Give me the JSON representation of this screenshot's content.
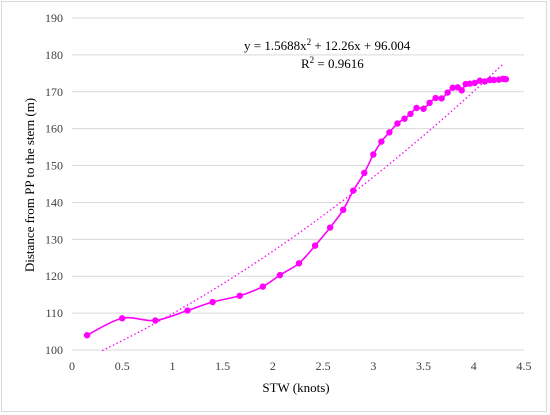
{
  "chart_data": {
    "type": "scatter",
    "xlabel": "STW (knots)",
    "ylabel": "Distance from PP to the stern (m)",
    "xlim": [
      0,
      4.5
    ],
    "ylim": [
      100,
      190
    ],
    "x_ticks": [
      "0",
      "0.5",
      "1",
      "1.5",
      "2",
      "2.5",
      "3",
      "3.5",
      "4",
      "4.5"
    ],
    "y_ticks": [
      "100",
      "110",
      "120",
      "130",
      "140",
      "150",
      "160",
      "170",
      "180",
      "190"
    ],
    "grid": "horizontal",
    "legend": "none",
    "colors": {
      "series": "#ff00ff",
      "grid": "#d9d9d9",
      "frame": "#d9d9d9"
    },
    "equation": {
      "prefix": "y = 1.5688x",
      "sup": "2",
      "suffix": " + 12.26x + 96.004"
    },
    "r2": {
      "prefix": "R",
      "sup": "2",
      "suffix": " = 0.9616"
    },
    "trendline": {
      "type": "polynomial",
      "order": 2,
      "a": 1.5688,
      "b": 12.26,
      "c": 96.004,
      "x_range": [
        0.3,
        4.3
      ],
      "style": "dotted"
    },
    "series": [
      {
        "x": [
          0.15,
          0.5,
          0.83,
          1.15,
          1.4,
          1.67,
          1.9,
          2.07,
          2.26,
          2.42,
          2.57,
          2.7,
          2.8,
          2.91,
          3.0,
          3.08,
          3.16,
          3.24,
          3.31,
          3.37,
          3.43,
          3.5,
          3.56,
          3.62,
          3.68,
          3.74,
          3.79,
          3.84,
          3.88,
          3.92,
          3.96,
          4.01,
          4.06,
          4.11,
          4.16,
          4.2,
          4.25,
          4.29,
          4.32
        ],
        "y": [
          104.0,
          108.6,
          108.0,
          110.7,
          113.0,
          114.7,
          117.2,
          120.3,
          123.5,
          128.3,
          133.2,
          138.0,
          143.2,
          148.0,
          153.0,
          156.5,
          159.0,
          161.4,
          162.7,
          164.0,
          165.6,
          165.4,
          167.0,
          168.3,
          168.2,
          169.8,
          171.1,
          171.2,
          170.4,
          172.1,
          172.2,
          172.4,
          173.0,
          172.8,
          173.2,
          173.2,
          173.3,
          173.5,
          173.4
        ]
      }
    ]
  }
}
